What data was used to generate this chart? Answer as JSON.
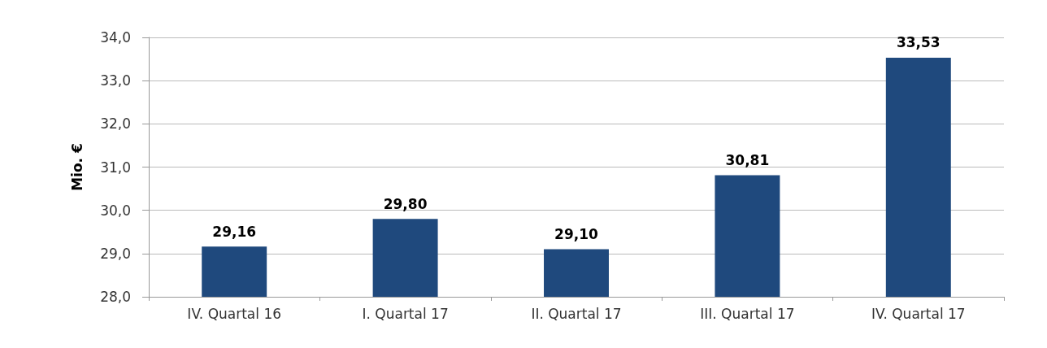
{
  "chart_data": {
    "type": "bar",
    "ylabel": "Mio. €",
    "categories": [
      "IV. Quartal 16",
      "I. Quartal 17",
      "II. Quartal 17",
      "III. Quartal 17",
      "IV. Quartal 17"
    ],
    "values": [
      29.16,
      29.8,
      29.1,
      30.81,
      33.53
    ],
    "value_labels": [
      "29,16",
      "29,80",
      "29,10",
      "30,81",
      "33,53"
    ],
    "color": "#1f497d",
    "ylim": [
      28,
      34
    ],
    "yticks": [
      {
        "value": 28,
        "label": "28,0"
      },
      {
        "value": 29,
        "label": "29,0"
      },
      {
        "value": 30,
        "label": "30,0"
      },
      {
        "value": 31,
        "label": "31,0"
      },
      {
        "value": 32,
        "label": "32,0"
      },
      {
        "value": 33,
        "label": "33,0"
      },
      {
        "value": 34,
        "label": "34,0"
      }
    ],
    "grid": "y"
  }
}
